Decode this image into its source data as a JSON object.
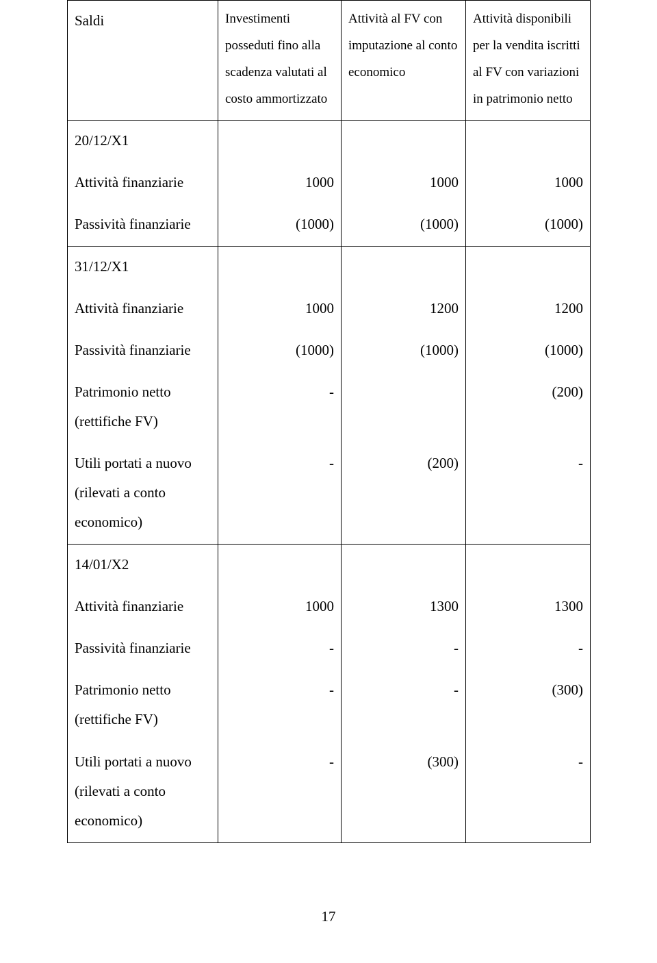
{
  "header": {
    "colA": "Saldi",
    "colB_lines": [
      "Investimenti",
      "posseduti fino alla",
      "scadenza valutati al",
      "costo ammortizzato"
    ],
    "colC_lines": [
      "Attività al FV con",
      "imputazione al conto",
      "economico"
    ],
    "colD_lines": [
      "Attività disponibili",
      "per la vendita iscritti",
      "al FV con variazioni",
      "in patrimonio netto"
    ]
  },
  "sections": [
    {
      "heading": "20/12/X1",
      "rows": [
        {
          "label": "Attività finanziarie",
          "c1": "1000",
          "c2": "1000",
          "c3": "1000"
        },
        {
          "label": "Passività finanziarie",
          "c1": "(1000)",
          "c2": "(1000)",
          "c3": "(1000)"
        }
      ]
    },
    {
      "heading": "31/12/X1",
      "rows": [
        {
          "label": "Attività finanziarie",
          "c1": "1000",
          "c2": "1200",
          "c3": "1200"
        },
        {
          "label": "Passività finanziarie",
          "c1": "(1000)",
          "c2": "(1000)",
          "c3": "(1000)"
        },
        {
          "label": "Patrimonio netto (rettifiche FV)",
          "c1": "-",
          "c2": "",
          "c3": "(200)"
        },
        {
          "label": "Utili portati a nuovo (rilevati a conto economico)",
          "c1": "-",
          "c2": "(200)",
          "c3": "-"
        }
      ]
    },
    {
      "heading": "14/01/X2",
      "rows": [
        {
          "label": "Attività finanziarie",
          "c1": "1000",
          "c2": "1300",
          "c3": "1300"
        },
        {
          "label": "Passività finanziarie",
          "c1": "-",
          "c2": "-",
          "c3": "-"
        },
        {
          "label": "Patrimonio netto (rettifiche FV)",
          "c1": "-",
          "c2": "-",
          "c3": "(300)"
        },
        {
          "label": "Utili portati a nuovo (rilevati a conto economico)",
          "c1": "-",
          "c2": "(300)",
          "c3": "-"
        }
      ]
    }
  ],
  "page_number": "17"
}
